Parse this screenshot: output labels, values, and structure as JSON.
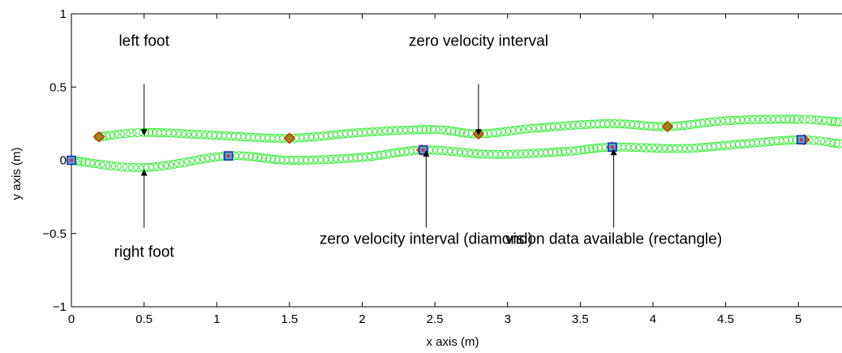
{
  "chart_data": {
    "type": "scatter",
    "title": "",
    "xlabel": "x axis (m)",
    "ylabel": "y axis (m)",
    "xlim": [
      0,
      5.3
    ],
    "ylim": [
      -1,
      1
    ],
    "xticks": [
      "0",
      "0.5",
      "1",
      "1.5",
      "2",
      "2.5",
      "3",
      "3.5",
      "4",
      "4.5",
      "5"
    ],
    "yticks": [
      "−1",
      "−0.5",
      "0",
      "0.5",
      "1"
    ],
    "grid": false,
    "legend": "none",
    "colors": {
      "trajectory": "#33ee33",
      "diamond_fill": "#9a8a1a",
      "diamond_edge": "#dd2a00",
      "rectangle_edge": "#1a22c8",
      "rectangle_fill": "#55aaaa",
      "rectangle_dot": "#ee1188",
      "annotation": "#000000"
    },
    "series": [
      {
        "key": "left_foot",
        "marker": "circle-open",
        "path": [
          [
            0.19,
            0.16
          ],
          [
            0.5,
            0.19
          ],
          [
            1.0,
            0.17
          ],
          [
            1.5,
            0.15
          ],
          [
            2.0,
            0.19
          ],
          [
            2.5,
            0.21
          ],
          [
            2.8,
            0.18
          ],
          [
            3.2,
            0.22
          ],
          [
            3.7,
            0.25
          ],
          [
            4.1,
            0.23
          ],
          [
            4.5,
            0.27
          ],
          [
            5.0,
            0.28
          ],
          [
            5.3,
            0.26
          ]
        ]
      },
      {
        "key": "right_foot",
        "marker": "circle-open",
        "path": [
          [
            0.0,
            0.0
          ],
          [
            0.5,
            -0.05
          ],
          [
            1.08,
            0.03
          ],
          [
            1.5,
            0.0
          ],
          [
            2.0,
            0.02
          ],
          [
            2.42,
            0.07
          ],
          [
            2.9,
            0.04
          ],
          [
            3.4,
            0.06
          ],
          [
            3.72,
            0.09
          ],
          [
            4.2,
            0.08
          ],
          [
            4.6,
            0.11
          ],
          [
            5.02,
            0.14
          ],
          [
            5.3,
            0.11
          ]
        ]
      }
    ],
    "zero_velocity_diamonds": [
      [
        0.19,
        0.16
      ],
      [
        1.5,
        0.15
      ],
      [
        2.41,
        0.07
      ],
      [
        2.8,
        0.18
      ],
      [
        3.72,
        0.09
      ],
      [
        4.1,
        0.23
      ],
      [
        5.04,
        0.14
      ]
    ],
    "vision_rectangles": [
      [
        0.0,
        0.0
      ],
      [
        1.08,
        0.03
      ],
      [
        2.42,
        0.07
      ],
      [
        3.72,
        0.09
      ],
      [
        5.02,
        0.14
      ]
    ],
    "annotations": [
      {
        "key": "left_foot",
        "text": "left foot",
        "text_at": [
          0.5,
          0.78
        ],
        "tail": [
          0.5,
          0.52
        ],
        "head": [
          0.5,
          0.19
        ]
      },
      {
        "key": "zero_velocity",
        "text": "zero velocity interval",
        "text_at": [
          2.8,
          0.78
        ],
        "tail": [
          2.8,
          0.52
        ],
        "head": [
          2.8,
          0.19
        ]
      },
      {
        "key": "right_foot",
        "text": "right foot",
        "text_at": [
          0.5,
          -0.66
        ],
        "tail": [
          0.5,
          -0.46
        ],
        "head": [
          0.5,
          -0.05
        ]
      },
      {
        "key": "zero_velocity_diamond",
        "text": "zero velocity interval (diamond)",
        "text_at": [
          2.44,
          -0.57
        ],
        "tail": [
          2.44,
          -0.46
        ],
        "head": [
          2.44,
          0.08
        ]
      },
      {
        "key": "vision_rectangle",
        "text": "vision data available (rectangle)",
        "text_at": [
          3.73,
          -0.57
        ],
        "tail": [
          3.73,
          -0.46
        ],
        "head": [
          3.73,
          0.09
        ]
      }
    ]
  }
}
